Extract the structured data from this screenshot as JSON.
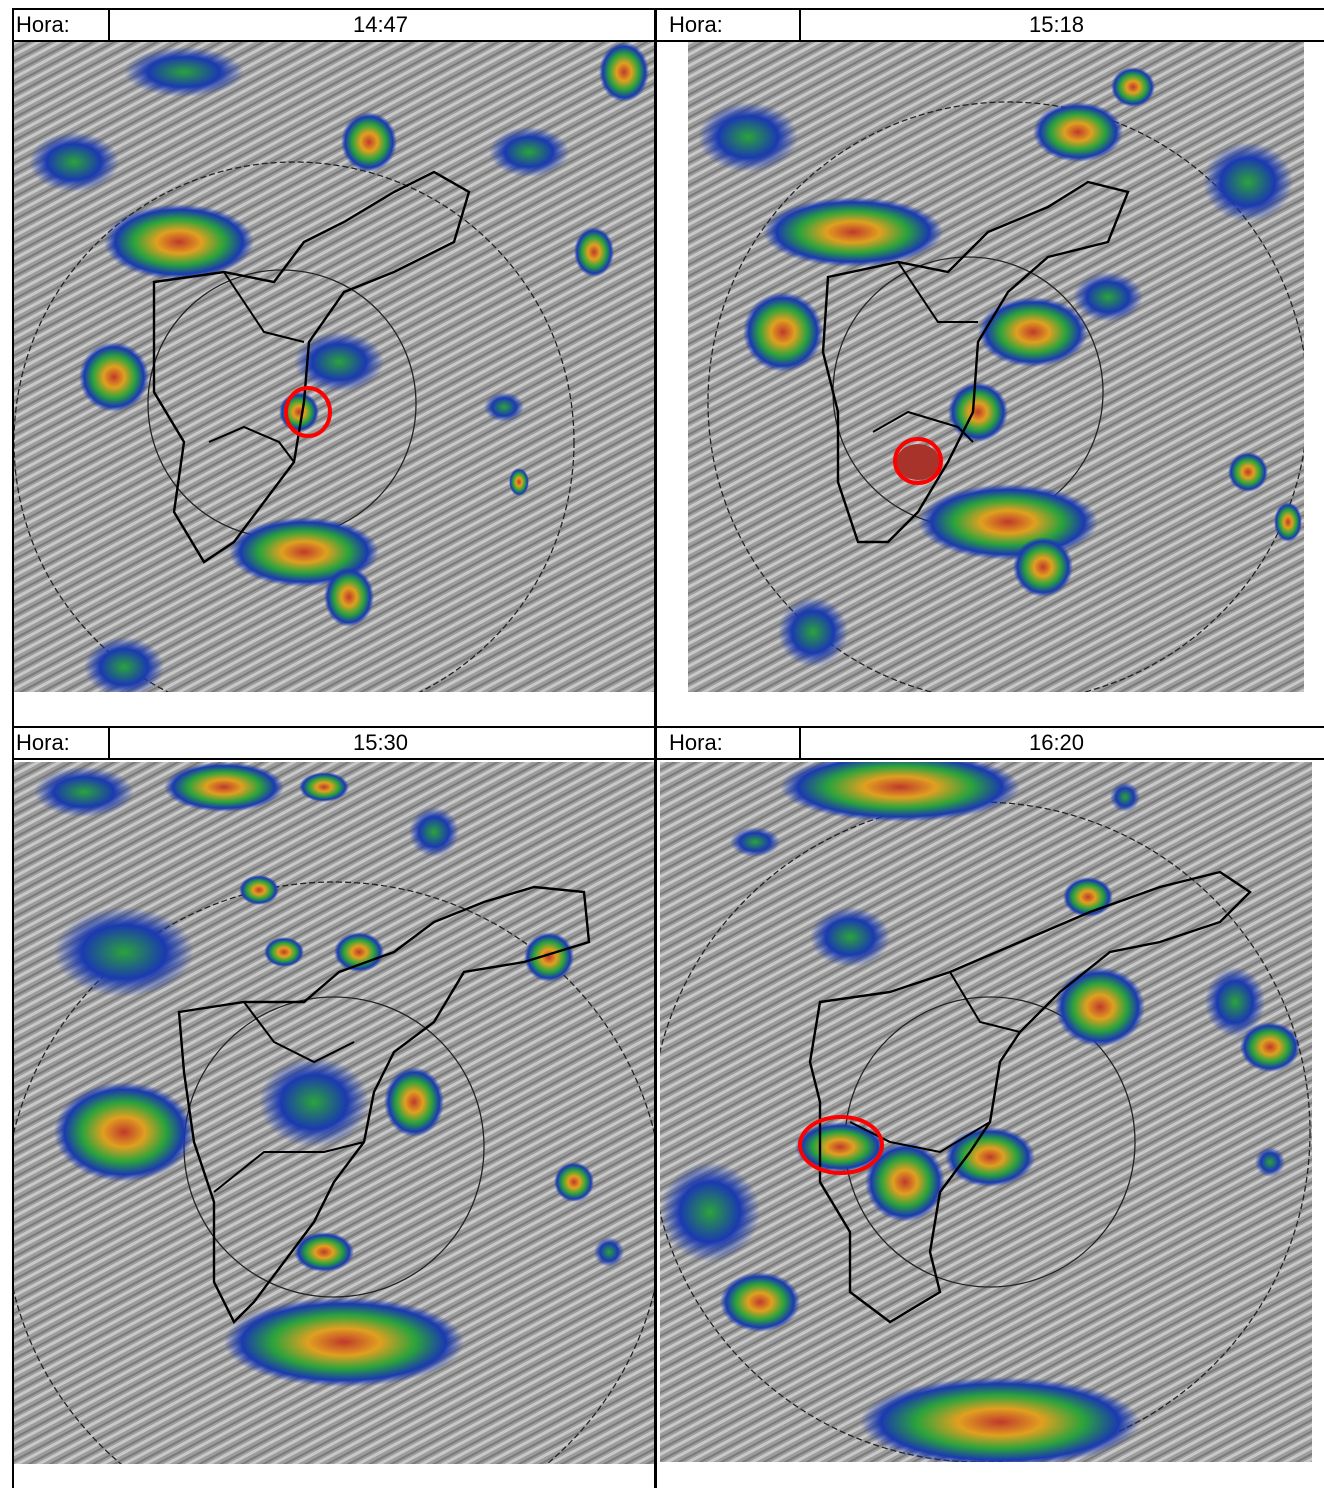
{
  "panels": [
    {
      "label": "Hora:",
      "time": "14:47"
    },
    {
      "label": "Hora:",
      "time": "15:18"
    },
    {
      "label": "Hora:",
      "time": "15:30"
    },
    {
      "label": "Hora:",
      "time": "16:20"
    }
  ],
  "colors": {
    "terrain": "#9c9c9c",
    "weak_echo": "#1a2fb0",
    "moderate_echo": "#22a33a",
    "strong_echo": "#d23a2a",
    "highlight_ring": "#ff0000"
  }
}
